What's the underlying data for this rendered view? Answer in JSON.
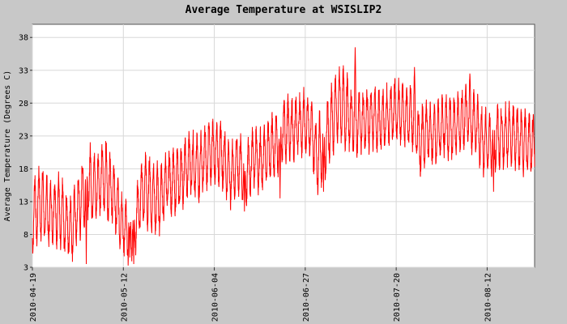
{
  "chart_data": {
    "type": "line",
    "title": "Average Temperature at WSISLIP2",
    "xlabel": "",
    "ylabel": "Average Temperature (Degrees C)",
    "ylim": [
      3,
      40
    ],
    "y_ticks": [
      3,
      8,
      13,
      18,
      23,
      28,
      33,
      38
    ],
    "x_ticks": [
      "2010-04-19",
      "2010-05-12",
      "2010-06-04",
      "2010-06-27",
      "2010-07-20",
      "2010-08-12"
    ],
    "xlim": [
      "2010-04-19",
      "2010-08-24"
    ],
    "grid": true,
    "line_color": "#ff0000",
    "sampling": "hourly",
    "series": [
      {
        "anchors": [
          [
            "2010-04-19",
            11
          ],
          [
            "2010-04-21",
            13
          ],
          [
            "2010-04-23",
            11
          ],
          [
            "2010-04-25",
            12
          ],
          [
            "2010-04-27",
            10
          ],
          [
            "2010-04-29",
            9
          ],
          [
            "2010-05-01",
            13
          ],
          [
            "2010-05-03",
            16
          ],
          [
            "2010-05-05",
            15
          ],
          [
            "2010-05-07",
            17
          ],
          [
            "2010-05-09",
            15
          ],
          [
            "2010-05-11",
            11
          ],
          [
            "2010-05-13",
            8
          ],
          [
            "2010-05-15",
            10
          ],
          [
            "2010-05-17",
            15
          ],
          [
            "2010-05-19",
            14
          ],
          [
            "2010-05-21",
            13
          ],
          [
            "2010-05-23",
            16
          ],
          [
            "2010-05-25",
            16
          ],
          [
            "2010-05-27",
            17
          ],
          [
            "2010-05-29",
            19
          ],
          [
            "2010-05-31",
            18
          ],
          [
            "2010-06-02",
            20
          ],
          [
            "2010-06-04",
            21
          ],
          [
            "2010-06-06",
            20
          ],
          [
            "2010-06-08",
            17
          ],
          [
            "2010-06-10",
            19
          ],
          [
            "2010-06-12",
            17
          ],
          [
            "2010-06-14",
            20
          ],
          [
            "2010-06-16",
            19
          ],
          [
            "2010-06-18",
            21
          ],
          [
            "2010-06-20",
            22
          ],
          [
            "2010-06-22",
            24
          ],
          [
            "2010-06-24",
            24
          ],
          [
            "2010-06-26",
            25
          ],
          [
            "2010-06-28",
            25
          ],
          [
            "2010-06-30",
            20
          ],
          [
            "2010-07-02",
            22
          ],
          [
            "2010-07-04",
            26
          ],
          [
            "2010-07-06",
            28
          ],
          [
            "2010-07-08",
            26
          ],
          [
            "2010-07-10",
            25
          ],
          [
            "2010-07-12",
            25
          ],
          [
            "2010-07-14",
            26
          ],
          [
            "2010-07-16",
            25
          ],
          [
            "2010-07-18",
            26
          ],
          [
            "2010-07-20",
            27
          ],
          [
            "2010-07-22",
            26
          ],
          [
            "2010-07-24",
            26
          ],
          [
            "2010-07-26",
            22
          ],
          [
            "2010-07-28",
            24
          ],
          [
            "2010-07-30",
            23
          ],
          [
            "2010-08-01",
            25
          ],
          [
            "2010-08-03",
            24
          ],
          [
            "2010-08-05",
            25
          ],
          [
            "2010-08-07",
            26
          ],
          [
            "2010-08-09",
            25
          ],
          [
            "2010-08-11",
            22
          ],
          [
            "2010-08-13",
            22
          ],
          [
            "2010-08-15",
            23
          ],
          [
            "2010-08-17",
            23
          ],
          [
            "2010-08-19",
            23
          ],
          [
            "2010-08-21",
            22
          ],
          [
            "2010-08-24",
            22
          ]
        ],
        "daily_amplitude": [
          5,
          5,
          4,
          5,
          4,
          4,
          5,
          5,
          4,
          5,
          4,
          4,
          4,
          4,
          5,
          5,
          4,
          4,
          4,
          4,
          4,
          4,
          4,
          4,
          4,
          4,
          4,
          4,
          4,
          4,
          4,
          4,
          4,
          4,
          4,
          4,
          5,
          5,
          5,
          5,
          4,
          4,
          4,
          4,
          4,
          4,
          4,
          4,
          4,
          4,
          4,
          4,
          4,
          4,
          4,
          4,
          4,
          4,
          4,
          4,
          4,
          4,
          4,
          4
        ],
        "extremes": [
          [
            "2010-05-02",
            3.5
          ],
          [
            "2010-05-13",
            4.5
          ],
          [
            "2010-05-14",
            3.5
          ],
          [
            "2010-06-11",
            11.5
          ],
          [
            "2010-06-20",
            13.5
          ],
          [
            "2010-07-01",
            14.5
          ],
          [
            "2010-07-09",
            36.5
          ],
          [
            "2010-07-24",
            33.5
          ],
          [
            "2010-08-07",
            32.5
          ],
          [
            "2010-08-13",
            14.5
          ]
        ]
      }
    ]
  }
}
